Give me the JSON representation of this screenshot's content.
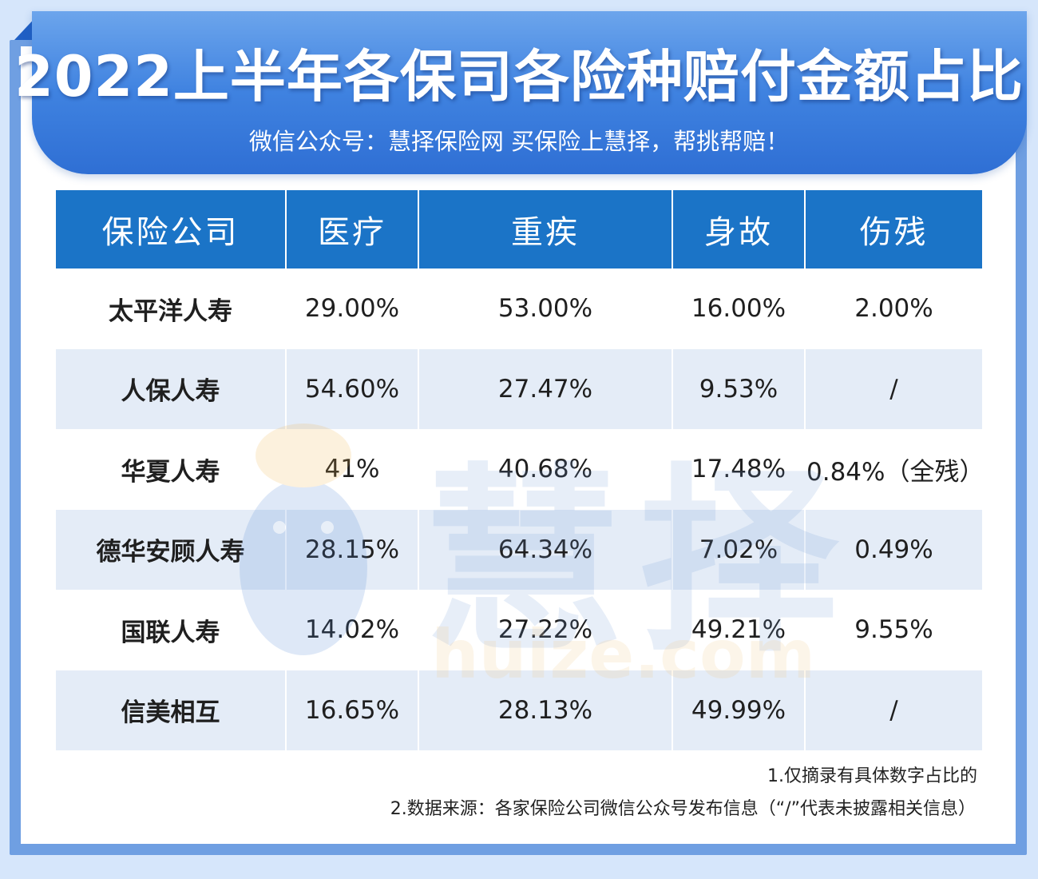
{
  "title": "2022上半年各保司各险种赔付金额占比",
  "subtitle": "微信公众号：慧择保险网 买保险上慧择，帮挑帮赔！",
  "watermark": {
    "text": "慧择",
    "url": "huize.com"
  },
  "notes": [
    "1.仅摘录有具体数字占比的",
    "2.数据来源：各家保险公司微信公众号发布信息（“/”代表未披露相关信息）"
  ],
  "colors": {
    "header_blue": "#1b74c7",
    "banner_blue": "#3f82e0",
    "frame_blue": "#6f9fe2",
    "row_alt": "#e4ecf7"
  },
  "chart_data": {
    "type": "table",
    "title": "2022上半年各保司各险种赔付金额占比",
    "columns": [
      "保险公司",
      "医疗",
      "重疾",
      "身故",
      "伤残"
    ],
    "rows": [
      [
        "太平洋人寿",
        "29.00%",
        "53.00%",
        "16.00%",
        "2.00%"
      ],
      [
        "人保人寿",
        "54.60%",
        "27.47%",
        "9.53%",
        "/"
      ],
      [
        "华夏人寿",
        "41%",
        "40.68%",
        "17.48%",
        "0.84%（全残）"
      ],
      [
        "德华安顾人寿",
        "28.15%",
        "64.34%",
        "7.02%",
        "0.49%"
      ],
      [
        "国联人寿",
        "14.02%",
        "27.22%",
        "49.21%",
        "9.55%"
      ],
      [
        "信美相互",
        "16.65%",
        "28.13%",
        "49.99%",
        "/"
      ]
    ]
  }
}
